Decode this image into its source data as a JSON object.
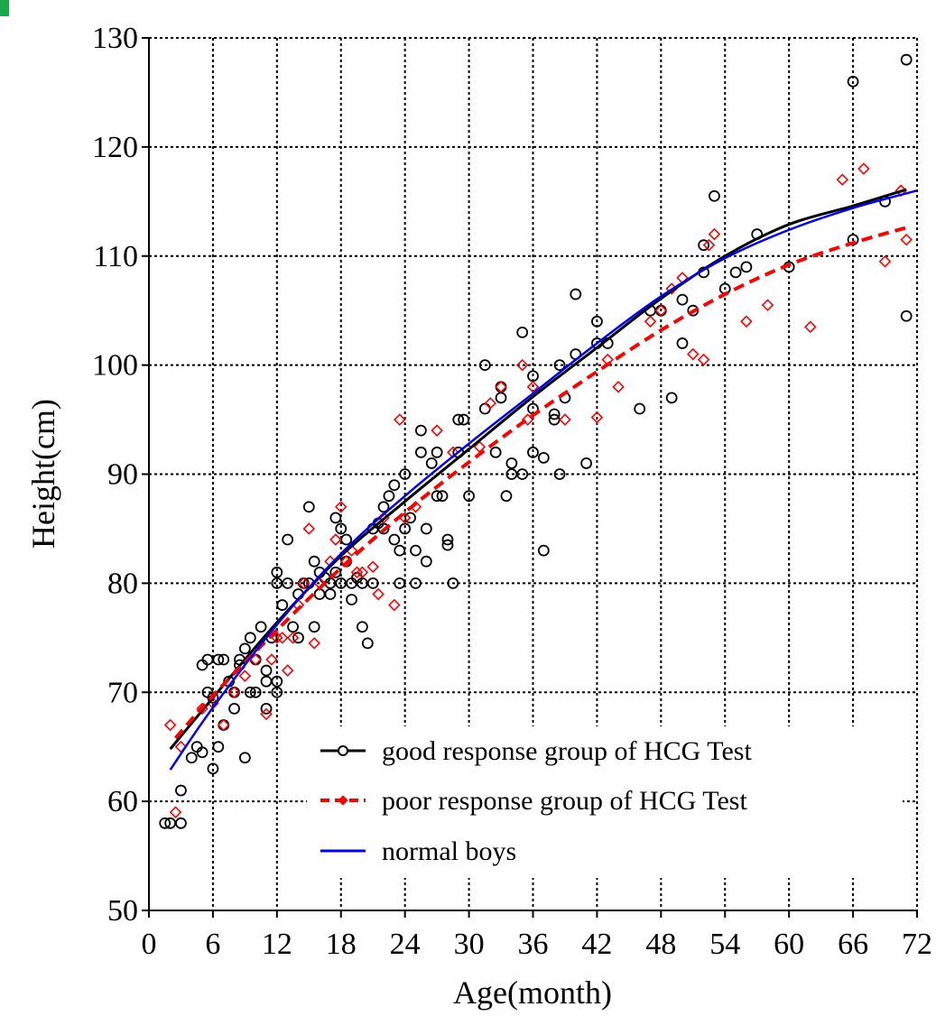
{
  "chart_data": {
    "type": "scatter",
    "xlabel": "Age(month)",
    "ylabel": "Height(cm)",
    "xlim": [
      0,
      72
    ],
    "ylim": [
      50,
      130
    ],
    "xticks": [
      0,
      6,
      12,
      18,
      24,
      30,
      36,
      42,
      48,
      54,
      60,
      66,
      72
    ],
    "yticks": [
      50,
      60,
      70,
      80,
      90,
      100,
      110,
      120,
      130
    ],
    "grid": true,
    "legend_position": "bottom-right",
    "series": [
      {
        "name": "good response group of HCG Test",
        "color": "#000000",
        "marker": "circle",
        "curve": [
          [
            2,
            64.8
          ],
          [
            6,
            69.5
          ],
          [
            12,
            76.4
          ],
          [
            18,
            82.5
          ],
          [
            24,
            87.5
          ],
          [
            30,
            92.3
          ],
          [
            36,
            97.1
          ],
          [
            42,
            101.6
          ],
          [
            48,
            106.1
          ],
          [
            54,
            110.0
          ],
          [
            60,
            112.9
          ],
          [
            66,
            114.6
          ],
          [
            71,
            116.1
          ]
        ],
        "points": [
          [
            1.5,
            58
          ],
          [
            2,
            58
          ],
          [
            3,
            58
          ],
          [
            3,
            61
          ],
          [
            4,
            64
          ],
          [
            4.5,
            65
          ],
          [
            5,
            64.5
          ],
          [
            5,
            72.5
          ],
          [
            5.5,
            73
          ],
          [
            5.5,
            70
          ],
          [
            6,
            63
          ],
          [
            6,
            69.5
          ],
          [
            6.5,
            65
          ],
          [
            6.5,
            73
          ],
          [
            7,
            67
          ],
          [
            7,
            73
          ],
          [
            7.5,
            71
          ],
          [
            8,
            68.5
          ],
          [
            8,
            70
          ],
          [
            8.5,
            72.5
          ],
          [
            8.5,
            73
          ],
          [
            9,
            64
          ],
          [
            9,
            74
          ],
          [
            9.5,
            70
          ],
          [
            9.5,
            75
          ],
          [
            10,
            70
          ],
          [
            10,
            73
          ],
          [
            10.5,
            76
          ],
          [
            11,
            68.5
          ],
          [
            11,
            72
          ],
          [
            11,
            71
          ],
          [
            11.5,
            75
          ],
          [
            12,
            70
          ],
          [
            12,
            71
          ],
          [
            12,
            81
          ],
          [
            12,
            80
          ],
          [
            12.5,
            78
          ],
          [
            13,
            80
          ],
          [
            13,
            84
          ],
          [
            13.5,
            76
          ],
          [
            14,
            75
          ],
          [
            14,
            79
          ],
          [
            14.5,
            80
          ],
          [
            15,
            80
          ],
          [
            15,
            87
          ],
          [
            15.5,
            82
          ],
          [
            15.5,
            76
          ],
          [
            16,
            81
          ],
          [
            16,
            79
          ],
          [
            16.5,
            80.5
          ],
          [
            17,
            80
          ],
          [
            17,
            79
          ],
          [
            17.5,
            81
          ],
          [
            17.5,
            86
          ],
          [
            18,
            85
          ],
          [
            18,
            80
          ],
          [
            18.5,
            84
          ],
          [
            18.5,
            82
          ],
          [
            19,
            78.5
          ],
          [
            19,
            80
          ],
          [
            19.5,
            80.5
          ],
          [
            20,
            76
          ],
          [
            20,
            80
          ],
          [
            20.5,
            74.5
          ],
          [
            21,
            80
          ],
          [
            21,
            85
          ],
          [
            21.5,
            85.5
          ],
          [
            22,
            87
          ],
          [
            22,
            85
          ],
          [
            22.5,
            88
          ],
          [
            23,
            84
          ],
          [
            23,
            89
          ],
          [
            23.5,
            80
          ],
          [
            23.5,
            83
          ],
          [
            24,
            90
          ],
          [
            24,
            85
          ],
          [
            24.5,
            86
          ],
          [
            25,
            80
          ],
          [
            25,
            83
          ],
          [
            25.5,
            94
          ],
          [
            25.5,
            92
          ],
          [
            26,
            85
          ],
          [
            26,
            82
          ],
          [
            26.5,
            91
          ],
          [
            27,
            92
          ],
          [
            27,
            88
          ],
          [
            27.5,
            88
          ],
          [
            28,
            84
          ],
          [
            28,
            83.5
          ],
          [
            28.5,
            80
          ],
          [
            29,
            92
          ],
          [
            29,
            95
          ],
          [
            29.5,
            95
          ],
          [
            30,
            88
          ],
          [
            31.5,
            100
          ],
          [
            31.5,
            96
          ],
          [
            32.5,
            92
          ],
          [
            33,
            97
          ],
          [
            33,
            98
          ],
          [
            33.5,
            88
          ],
          [
            34,
            91
          ],
          [
            34,
            90
          ],
          [
            35,
            90
          ],
          [
            35,
            103
          ],
          [
            36,
            99
          ],
          [
            36,
            96
          ],
          [
            36,
            92
          ],
          [
            37,
            91.5
          ],
          [
            37,
            83
          ],
          [
            38,
            95
          ],
          [
            38,
            95.5
          ],
          [
            38.5,
            100
          ],
          [
            38.5,
            90
          ],
          [
            39,
            97
          ],
          [
            40,
            101
          ],
          [
            40,
            106.5
          ],
          [
            41,
            91
          ],
          [
            42,
            102
          ],
          [
            42,
            104
          ],
          [
            43,
            102
          ],
          [
            46,
            96
          ],
          [
            47,
            105
          ],
          [
            48,
            105
          ],
          [
            49,
            97
          ],
          [
            50,
            102
          ],
          [
            50,
            106
          ],
          [
            51,
            105
          ],
          [
            52,
            108.5
          ],
          [
            52,
            111
          ],
          [
            53,
            115.5
          ],
          [
            54,
            107
          ],
          [
            55,
            108.5
          ],
          [
            56,
            109
          ],
          [
            57,
            112
          ],
          [
            60,
            109
          ],
          [
            66,
            126
          ],
          [
            66,
            111.5
          ],
          [
            69,
            115
          ],
          [
            71,
            128
          ],
          [
            71,
            104.5
          ]
        ]
      },
      {
        "name": "poor response group of HCG Test",
        "color": "#ff0000",
        "marker": "diamond",
        "curve": [
          [
            2.5,
            65.8
          ],
          [
            6,
            69.7
          ],
          [
            12,
            75.7
          ],
          [
            18,
            81.4
          ],
          [
            24,
            86.5
          ],
          [
            30,
            91.1
          ],
          [
            36,
            95.4
          ],
          [
            42,
            99.4
          ],
          [
            48,
            103.2
          ],
          [
            54,
            106.5
          ],
          [
            60,
            109.2
          ],
          [
            66,
            111.2
          ],
          [
            71,
            112.6
          ]
        ],
        "points": [
          [
            2,
            67
          ],
          [
            2.5,
            59
          ],
          [
            3,
            65
          ],
          [
            5,
            68.5
          ],
          [
            6,
            69
          ],
          [
            7,
            67
          ],
          [
            8,
            70
          ],
          [
            9,
            71.5
          ],
          [
            10,
            73
          ],
          [
            11,
            68
          ],
          [
            11.5,
            73
          ],
          [
            12,
            75
          ],
          [
            12.5,
            75
          ],
          [
            13,
            72
          ],
          [
            13.5,
            75
          ],
          [
            14,
            78
          ],
          [
            14.5,
            80
          ],
          [
            15,
            85
          ],
          [
            15.5,
            74.5
          ],
          [
            16,
            80
          ],
          [
            17,
            82
          ],
          [
            17.5,
            84
          ],
          [
            18,
            87
          ],
          [
            18.5,
            82
          ],
          [
            19,
            83
          ],
          [
            19.5,
            81
          ],
          [
            20,
            81
          ],
          [
            21,
            81.5
          ],
          [
            21.5,
            79
          ],
          [
            22,
            86
          ],
          [
            23,
            78
          ],
          [
            23.5,
            95
          ],
          [
            24,
            86
          ],
          [
            25,
            87
          ],
          [
            27,
            94
          ],
          [
            28.5,
            92
          ],
          [
            31,
            92.5
          ],
          [
            32,
            96.5
          ],
          [
            33,
            98
          ],
          [
            35,
            100
          ],
          [
            35.5,
            95
          ],
          [
            36,
            98
          ],
          [
            39,
            95
          ],
          [
            42,
            95.2
          ],
          [
            43,
            100.5
          ],
          [
            44,
            98
          ],
          [
            47,
            104
          ],
          [
            48,
            105
          ],
          [
            49,
            107
          ],
          [
            50,
            108
          ],
          [
            51,
            101
          ],
          [
            52,
            100.5
          ],
          [
            52.5,
            111
          ],
          [
            53,
            112
          ],
          [
            56,
            104
          ],
          [
            58,
            105.5
          ],
          [
            62,
            103.5
          ],
          [
            65,
            117
          ],
          [
            67,
            118
          ],
          [
            69,
            109.5
          ],
          [
            70.5,
            116
          ],
          [
            71,
            111.5
          ]
        ]
      },
      {
        "name": "normal boys",
        "color": "#0000ff",
        "marker": "none",
        "curve": [
          [
            2,
            62.9
          ],
          [
            6,
            68.6
          ],
          [
            12,
            76.2
          ],
          [
            18,
            82.7
          ],
          [
            24,
            88.0
          ],
          [
            30,
            92.8
          ],
          [
            36,
            97.4
          ],
          [
            42,
            102.0
          ],
          [
            48,
            106.3
          ],
          [
            54,
            109.8
          ],
          [
            60,
            112.4
          ],
          [
            66,
            114.4
          ],
          [
            72,
            116.0
          ]
        ],
        "points": []
      }
    ]
  },
  "colors": {
    "corner_mark": "#1ca84a"
  }
}
